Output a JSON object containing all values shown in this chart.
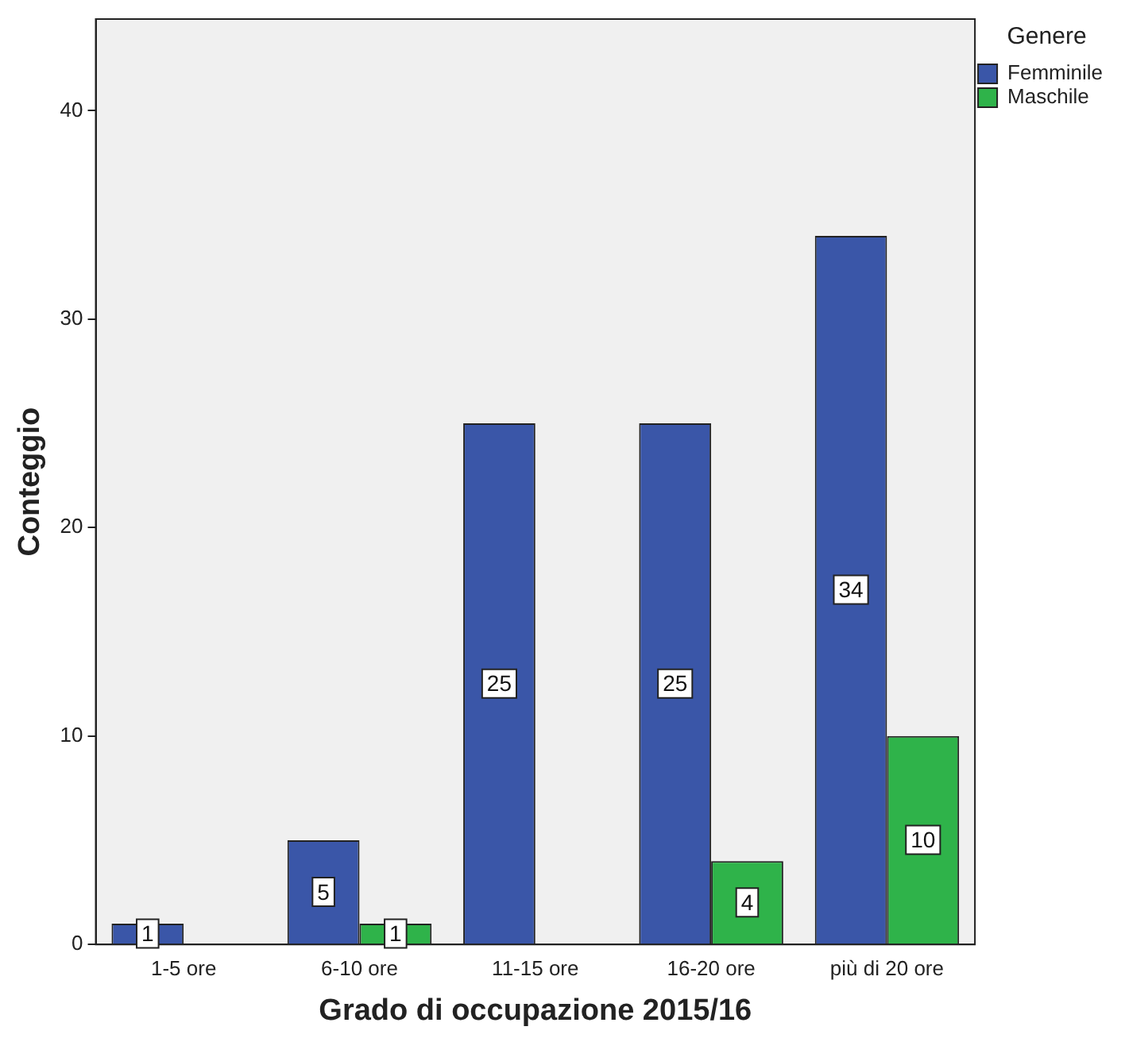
{
  "chart_data": {
    "type": "bar",
    "xlabel": "Grado di occupazione 2015/16",
    "ylabel": "Conteggio",
    "legend_title": "Genere",
    "categories": [
      "1-5 ore",
      "6-10 ore",
      "11-15 ore",
      "16-20 ore",
      "più di 20 ore"
    ],
    "series": [
      {
        "name": "Femminile",
        "color": "#3a56a8",
        "values": [
          1,
          5,
          25,
          25,
          34
        ]
      },
      {
        "name": "Maschile",
        "color": "#2fb34a",
        "values": [
          null,
          1,
          null,
          4,
          10
        ]
      }
    ],
    "ylim": [
      0,
      44.4
    ],
    "yticks": [
      0,
      10,
      20,
      30,
      40
    ],
    "grid": false,
    "legend": "top right",
    "data_labels": true
  }
}
